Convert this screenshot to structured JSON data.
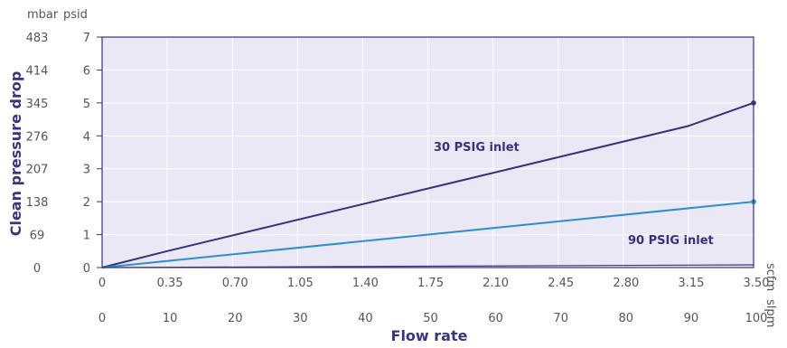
{
  "chart_data": {
    "type": "line",
    "xlabel": "Flow rate",
    "ylabel": "Clean pressure drop",
    "y_units": {
      "mbar": "mbar",
      "psid": "psid"
    },
    "x_units": {
      "scfm": "scfm",
      "slpm": "slpm"
    },
    "ylim": [
      0,
      7
    ],
    "xlim": [
      0,
      3.5
    ],
    "y_ticks_psid": [
      "0",
      "1",
      "2",
      "3",
      "4",
      "5",
      "6",
      "7"
    ],
    "y_ticks_mbar": [
      "0",
      "69",
      "138",
      "207",
      "276",
      "345",
      "414",
      "483"
    ],
    "x_ticks_scfm": [
      "0",
      "0.35",
      "0.70",
      "1.05",
      "1.40",
      "1.75",
      "2.10",
      "2.45",
      "2.80",
      "3.15",
      "3.50"
    ],
    "x_ticks_slpm": [
      "0",
      "10",
      "20",
      "30",
      "40",
      "50",
      "60",
      "70",
      "80",
      "90",
      "100"
    ],
    "grid": true,
    "series": [
      {
        "name": "30 PSIG inlet",
        "color": "#3b2f7e",
        "x": [
          0,
          0.35,
          3.15,
          3.5
        ],
        "y": [
          0,
          0.5,
          4.3,
          5.0
        ]
      },
      {
        "name": "90 PSIG inlet",
        "color": "#2b8fcf",
        "x": [
          0,
          3.5
        ],
        "y": [
          0,
          2.0
        ]
      }
    ],
    "baseline_color": "#3b2f7e",
    "plot_background": "#e9e8f4"
  }
}
